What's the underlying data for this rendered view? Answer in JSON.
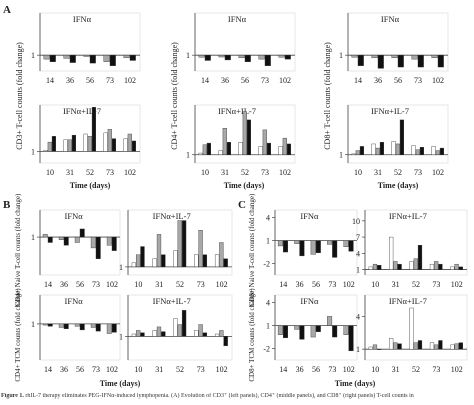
{
  "figure": {
    "caption_label": "Figure 1.",
    "caption_text": "rhIL-7 therapy eliminates PEG-IFNα-induced lymphopenia. (A) Evolution of CD3⁺ (left panels), CD4⁺ (middle panels), and CD8⁺ (right panels) T-cell counts in",
    "colors": {
      "white_bar": "#ffffff",
      "gray_bar": "#a8a8a8",
      "black_bar": "#111111",
      "axis": "#444444"
    }
  },
  "sections": {
    "A": {
      "label": "A",
      "ylabels": [
        "CD3+ T-cell counts (fold change)",
        "CD4+ T-cell counts (fold change)",
        "CD8+ T-cell counts (fold change)"
      ],
      "xlabel": "Time (days)"
    },
    "B": {
      "label": "B",
      "ylabels": [
        "CD4+ Naive T-cell counts (fold change)",
        "CD4+ TCM counts (fold change)"
      ],
      "xlabel": "Time (days)"
    },
    "C": {
      "label": "C",
      "ylabels": [
        "CD8+ Naive T-cell counts (fold change)",
        "CD8+ TCM counts (fold change)"
      ],
      "xlabel": "Time (days)"
    }
  },
  "chart_data": [
    {
      "id": "A-CD3-IFN",
      "type": "bar",
      "title": "IFNα",
      "categories": [
        "14",
        "36",
        "56",
        "73",
        "102"
      ],
      "yticks": [
        "1"
      ],
      "ylim": [
        0.4,
        2.6
      ],
      "series": [
        {
          "values": [
            0.85,
            0.88,
            0.95,
            0.75,
            0.9
          ]
        },
        {
          "values": [
            0.75,
            0.72,
            0.7,
            0.6,
            0.8
          ]
        }
      ]
    },
    {
      "id": "A-CD3-IL7",
      "type": "bar",
      "title": "IFNα+IL-7",
      "categories": [
        "10",
        "31",
        "52",
        "73",
        "102"
      ],
      "yticks": [
        "1"
      ],
      "ylim": [
        0,
        5
      ],
      "series": [
        {
          "values": [
            1.1,
            2.0,
            2.5,
            2.6,
            2.1
          ]
        },
        {
          "values": [
            1.8,
            2.0,
            2.3,
            2.9,
            2.5
          ]
        },
        {
          "values": [
            2.3,
            2.4,
            4.8,
            2.1,
            1.9
          ]
        }
      ]
    },
    {
      "id": "A-CD4-IFN",
      "type": "bar",
      "title": "IFNα",
      "categories": [
        "14",
        "36",
        "56",
        "73",
        "102"
      ],
      "yticks": [
        "1"
      ],
      "ylim": [
        0.4,
        2.6
      ],
      "series": [
        {
          "values": [
            0.92,
            0.93,
            0.9,
            0.85,
            0.92
          ]
        },
        {
          "values": [
            0.8,
            0.82,
            0.75,
            0.6,
            0.85
          ]
        }
      ]
    },
    {
      "id": "A-CD4-IL7",
      "type": "bar",
      "title": "IFNα+IL-7",
      "categories": [
        "10",
        "31",
        "52",
        "73",
        "102"
      ],
      "yticks": [
        "1"
      ],
      "ylim": [
        0,
        7
      ],
      "series": [
        {
          "values": [
            1.2,
            1.5,
            2.5,
            2.0,
            2.0
          ]
        },
        {
          "values": [
            2.2,
            4.2,
            6.2,
            4.0,
            3.0
          ]
        },
        {
          "values": [
            2.4,
            2.5,
            5.2,
            2.4,
            2.3
          ]
        }
      ]
    },
    {
      "id": "A-CD8-IFN",
      "type": "bar",
      "title": "IFNα",
      "categories": [
        "14",
        "36",
        "56",
        "73",
        "102"
      ],
      "yticks": [
        "1"
      ],
      "ylim": [
        0.4,
        2.6
      ],
      "series": [
        {
          "values": [
            0.92,
            0.9,
            0.9,
            0.85,
            0.9
          ]
        },
        {
          "values": [
            0.6,
            0.5,
            0.55,
            0.55,
            0.55
          ]
        }
      ]
    },
    {
      "id": "A-CD8-IL7",
      "type": "bar",
      "title": "IFNα+IL-7",
      "categories": [
        "10",
        "31",
        "52",
        "73",
        "102"
      ],
      "yticks": [
        "1"
      ],
      "ylim": [
        0,
        7
      ],
      "series": [
        {
          "values": [
            1.1,
            2.3,
            2.6,
            2.1,
            2.0
          ]
        },
        {
          "values": [
            1.5,
            1.8,
            2.3,
            1.6,
            1.5
          ]
        },
        {
          "values": [
            2.0,
            2.5,
            5.2,
            1.9,
            1.8
          ]
        }
      ]
    },
    {
      "id": "B-Naive-IFN",
      "type": "bar",
      "title": "IFNα",
      "categories": [
        "14",
        "36",
        "56",
        "73",
        "102"
      ],
      "yticks": [
        "1"
      ],
      "ylim": [
        0.3,
        1.5
      ],
      "series": [
        {
          "values": [
            1.05,
            0.95,
            0.9,
            0.8,
            0.85
          ]
        },
        {
          "values": [
            0.9,
            0.85,
            1.15,
            0.6,
            0.75
          ]
        }
      ]
    },
    {
      "id": "B-Naive-IL7",
      "type": "bar",
      "title": "IFNα+IL-7",
      "categories": [
        "10",
        "31",
        "52",
        "73",
        "102"
      ],
      "yticks": [
        "1"
      ],
      "ylim": [
        0,
        8
      ],
      "series": [
        {
          "values": [
            1.5,
            2.0,
            3.0,
            2.5,
            2.5
          ]
        },
        {
          "values": [
            2.5,
            5.0,
            6.7,
            5.5,
            4.0
          ]
        },
        {
          "values": [
            3.5,
            2.5,
            6.7,
            2.5,
            2.0
          ]
        }
      ]
    },
    {
      "id": "B-TCM-IFN",
      "type": "bar",
      "title": "IFNα",
      "categories": [
        "14",
        "36",
        "56",
        "73",
        "102"
      ],
      "yticks": [
        "1"
      ],
      "ylim": [
        -0.5,
        2.2
      ],
      "series": [
        {
          "values": [
            0.95,
            0.85,
            0.9,
            0.85,
            0.6
          ]
        },
        {
          "values": [
            0.9,
            0.8,
            0.75,
            0.7,
            0.65
          ]
        }
      ]
    },
    {
      "id": "B-TCM-IL7",
      "type": "bar",
      "title": "IFNα+IL-7",
      "categories": [
        "10",
        "31",
        "52",
        "73",
        "102"
      ],
      "yticks": [
        "1"
      ],
      "ylim": [
        -1,
        4.5
      ],
      "series": [
        {
          "values": [
            1.2,
            1.5,
            2.5,
            1.5,
            1.2
          ]
        },
        {
          "values": [
            1.5,
            1.8,
            2.0,
            2.0,
            1.5
          ]
        },
        {
          "values": [
            1.3,
            1.4,
            3.2,
            1.3,
            0.2
          ]
        }
      ]
    },
    {
      "id": "C-Naive-IFN",
      "type": "bar",
      "title": "IFNα",
      "categories": [
        "14",
        "36",
        "56",
        "73",
        "102"
      ],
      "yticks": [
        "4",
        "1",
        "-2"
      ],
      "ylim": [
        -3.5,
        5
      ],
      "series": [
        {
          "values": [
            0.3,
            0.6,
            -0.8,
            0.5,
            0.2
          ]
        },
        {
          "values": [
            -0.5,
            -1.0,
            -0.6,
            -1.2,
            -0.4
          ]
        }
      ]
    },
    {
      "id": "C-Naive-IL7",
      "type": "bar",
      "title": "IFNα+IL-7",
      "categories": [
        "10",
        "31",
        "52",
        "73",
        "102"
      ],
      "yticks": [
        "10",
        "7",
        "4",
        "1"
      ],
      "ylim": [
        0,
        12
      ],
      "series": [
        {
          "values": [
            1.5,
            7.0,
            2.5,
            2.0,
            1.5
          ]
        },
        {
          "values": [
            2.0,
            2.5,
            3.0,
            2.5,
            2.0
          ]
        },
        {
          "values": [
            1.8,
            2.0,
            5.5,
            2.0,
            1.5
          ]
        }
      ]
    },
    {
      "id": "C-TCM-IFN",
      "type": "bar",
      "title": "IFNα",
      "categories": [
        "14",
        "36",
        "56",
        "73",
        "102"
      ],
      "yticks": [
        "4",
        "1",
        "-2"
      ],
      "ylim": [
        -3.5,
        5
      ],
      "series": [
        {
          "values": [
            -0.2,
            0.5,
            -0.5,
            2.2,
            -0.2
          ]
        },
        {
          "values": [
            -0.6,
            -0.8,
            0.2,
            -0.5,
            -2.3
          ]
        }
      ]
    },
    {
      "id": "C-TCM-IL7",
      "type": "bar",
      "title": "IFNα+IL-7",
      "categories": [
        "10",
        "31",
        "52",
        "73",
        "102"
      ],
      "yticks": [
        "4",
        "1"
      ],
      "ylim": [
        0,
        6
      ],
      "series": [
        {
          "values": [
            1.2,
            2.0,
            4.8,
            1.6,
            1.4
          ]
        },
        {
          "values": [
            1.4,
            1.6,
            1.6,
            1.4,
            1.5
          ]
        },
        {
          "values": [
            1.0,
            1.5,
            1.8,
            1.8,
            1.6
          ]
        }
      ]
    }
  ]
}
